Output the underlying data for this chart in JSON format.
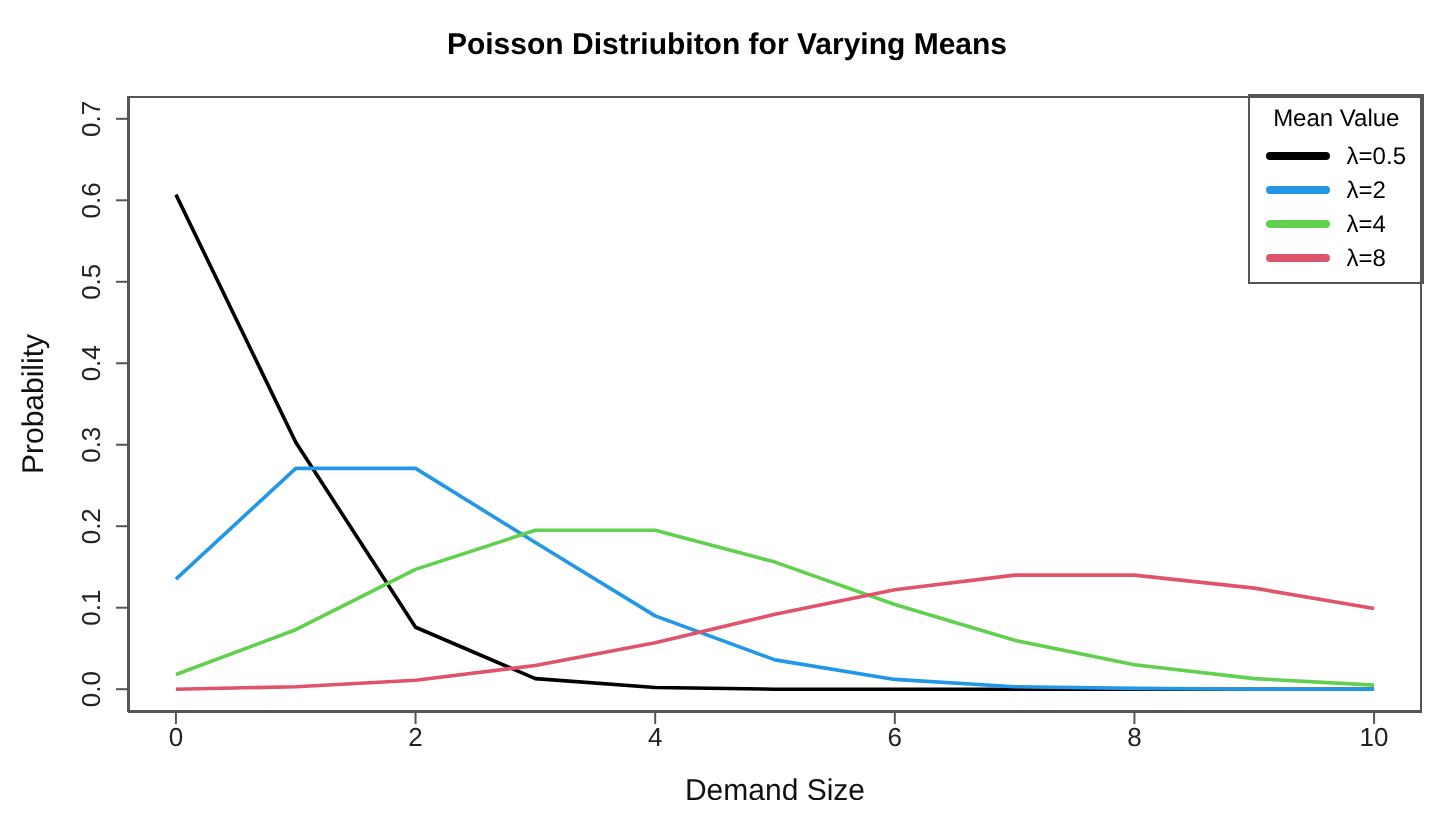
{
  "chart_data": {
    "type": "line",
    "title": "Poisson Distriubiton for Varying Means",
    "xlabel": "Demand Size",
    "ylabel": "Probability",
    "legend_title": "Mean Value",
    "legend": "top right",
    "grid": false,
    "marker": "none",
    "line_style": "solid",
    "x": [
      0,
      1,
      2,
      3,
      4,
      5,
      6,
      7,
      8,
      9,
      10
    ],
    "xlim": [
      -0.4,
      10.4
    ],
    "xticks": [
      0,
      2,
      4,
      6,
      8,
      10
    ],
    "ylim": [
      -0.028,
      0.728
    ],
    "yticks": [
      {
        "value": 0,
        "label": "0.0"
      },
      0.1,
      0.2,
      0.3,
      0.4,
      0.5,
      0.6,
      0.7
    ],
    "series": [
      {
        "name": "λ=0.5",
        "color": "#000000",
        "values": [
          0.607,
          0.303,
          0.076,
          0.013,
          0.002,
          0,
          0,
          0,
          0,
          0,
          0
        ]
      },
      {
        "name": "λ=2",
        "color": "#2297e6",
        "values": [
          0.135,
          0.271,
          0.271,
          0.18,
          0.09,
          0.036,
          0.012,
          0.003,
          0.001,
          0,
          0
        ]
      },
      {
        "name": "λ=4",
        "color": "#61d04f",
        "values": [
          0.018,
          0.073,
          0.147,
          0.195,
          0.195,
          0.156,
          0.104,
          0.06,
          0.03,
          0.013,
          0.005
        ]
      },
      {
        "name": "λ=8",
        "color": "#df536b",
        "values": [
          0,
          0.003,
          0.011,
          0.029,
          0.057,
          0.092,
          0.122,
          0.14,
          0.14,
          0.124,
          0.099
        ]
      }
    ]
  }
}
